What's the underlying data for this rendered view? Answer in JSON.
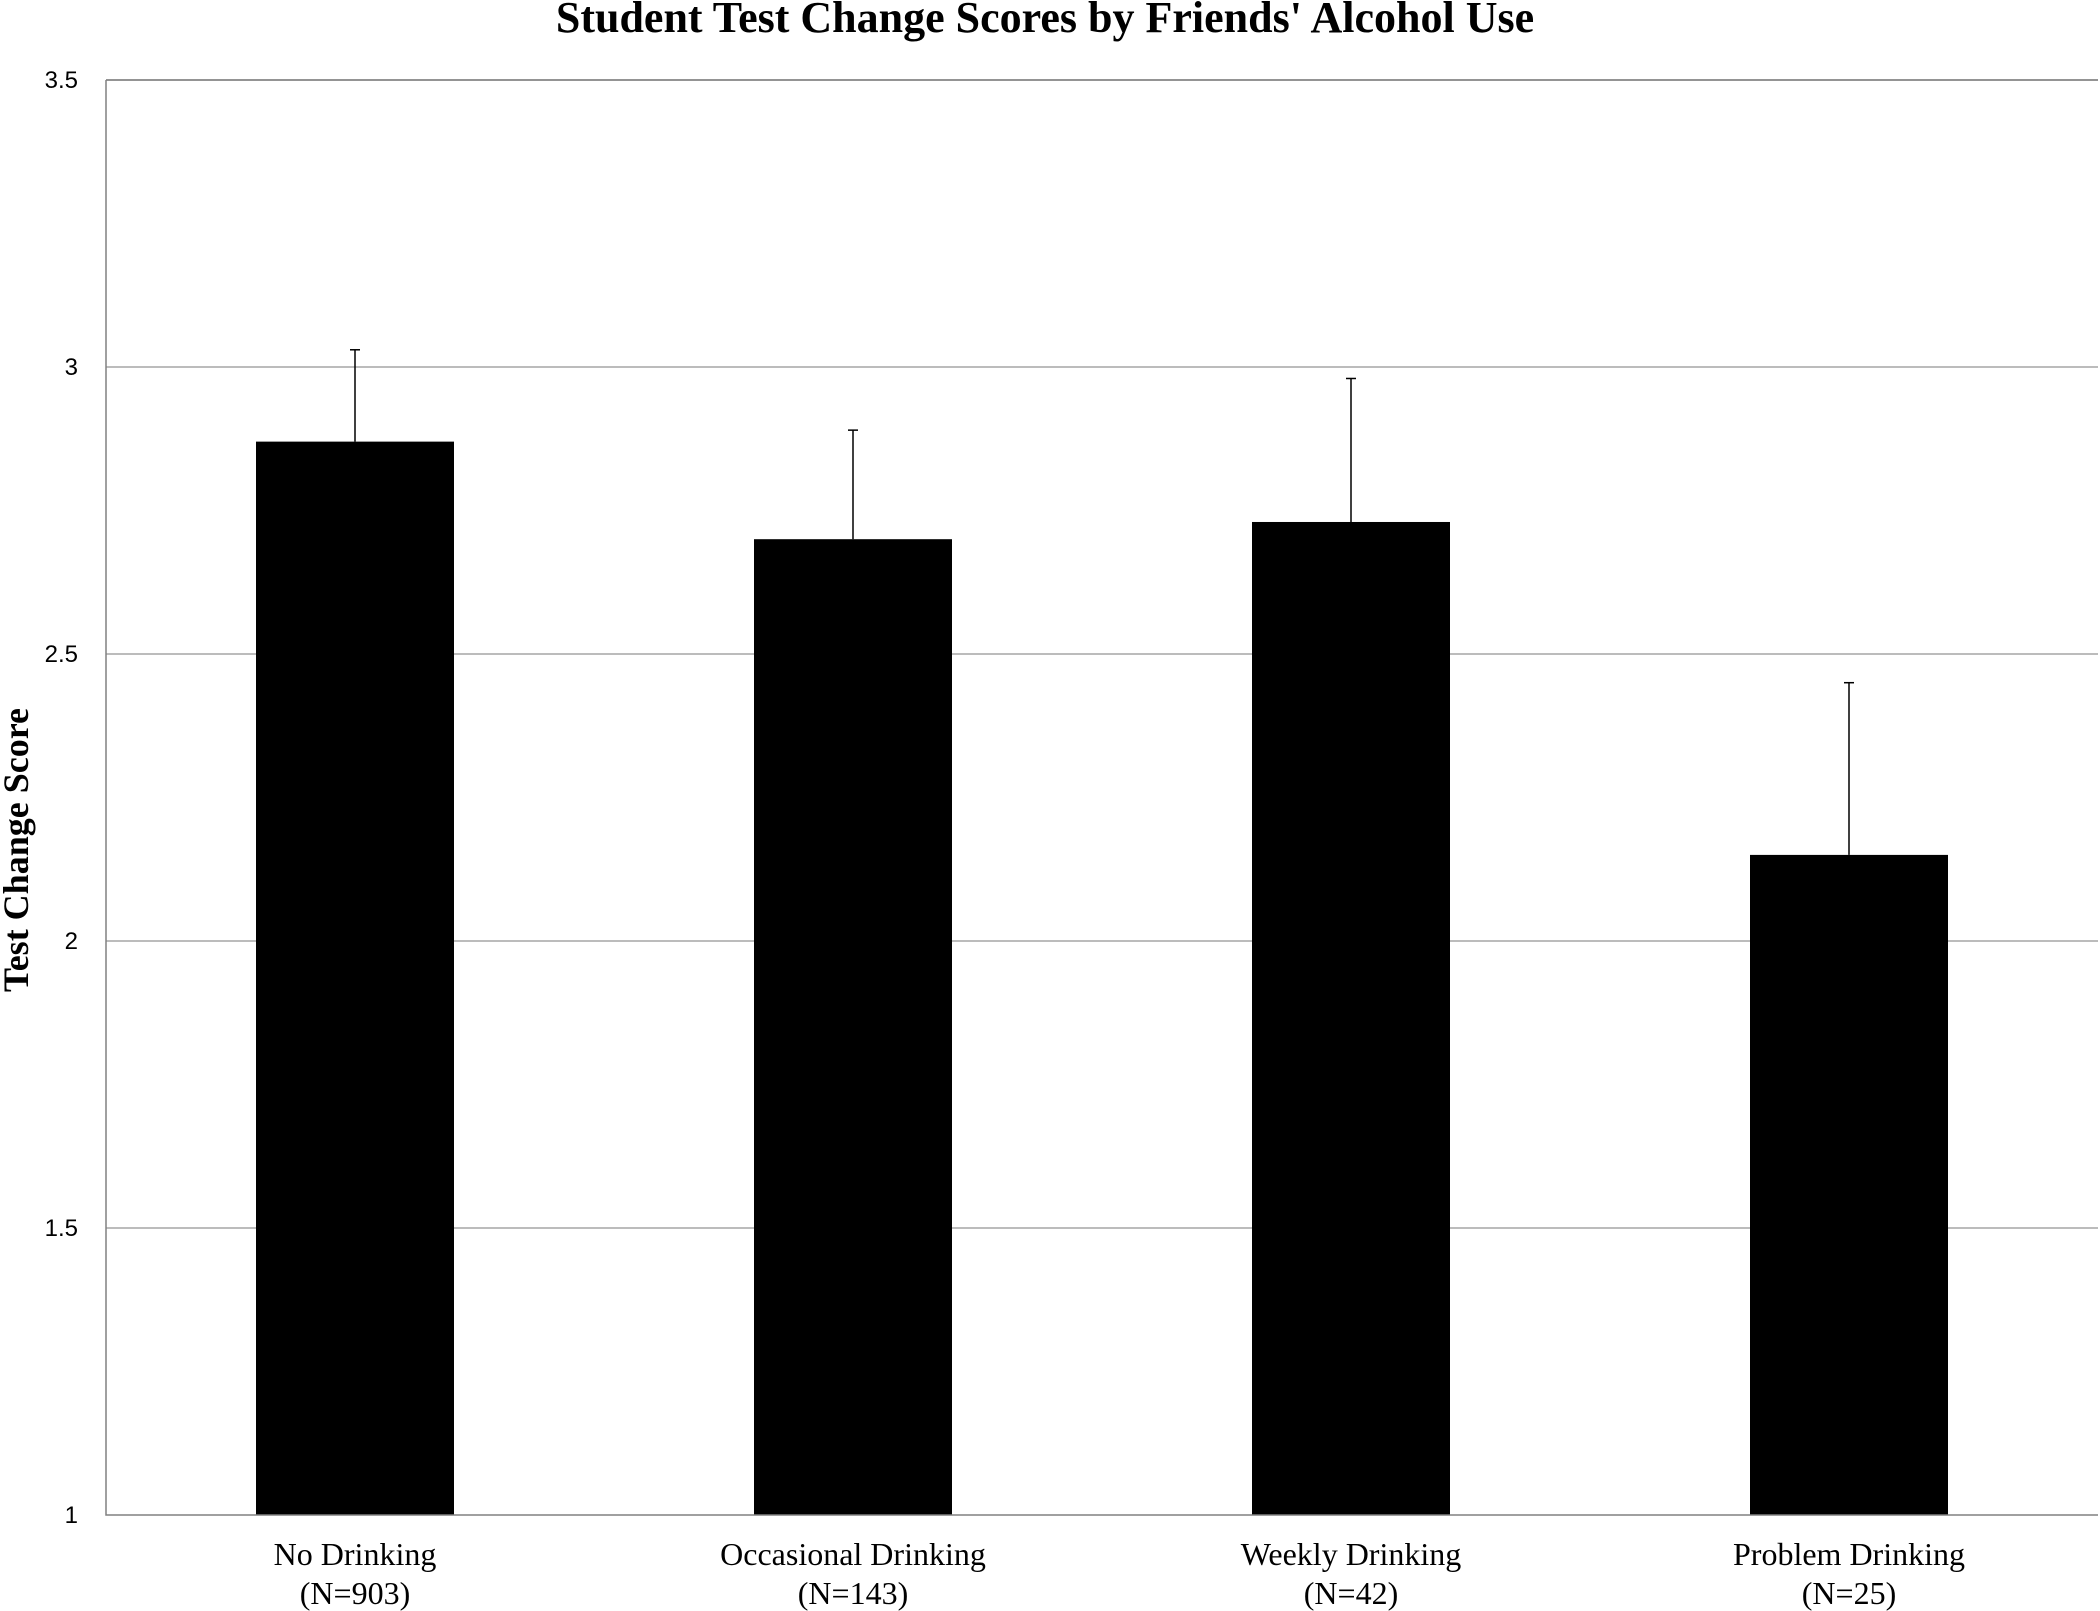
{
  "chart_data": {
    "type": "bar",
    "title": "Student Test Change Scores by Friends' Alcohol Use",
    "ylabel": "Test Change Score",
    "xlabel": "",
    "ylim": [
      1,
      3.5
    ],
    "yticks": [
      "1",
      "1.5",
      "2",
      "2.5",
      "3",
      "3.5"
    ],
    "categories": [
      {
        "label": "No Drinking",
        "n": "(N=903)"
      },
      {
        "label": "Occasional Drinking",
        "n": "(N=143)"
      },
      {
        "label": "Weekly Drinking",
        "n": "(N=42)"
      },
      {
        "label": "Problem Drinking",
        "n": "(N=25)"
      }
    ],
    "values": [
      2.87,
      2.7,
      2.73,
      2.15
    ],
    "error_upper": [
      3.03,
      2.89,
      2.98,
      2.45
    ],
    "bar_color": "#000000",
    "grid": true,
    "legend": "none"
  }
}
